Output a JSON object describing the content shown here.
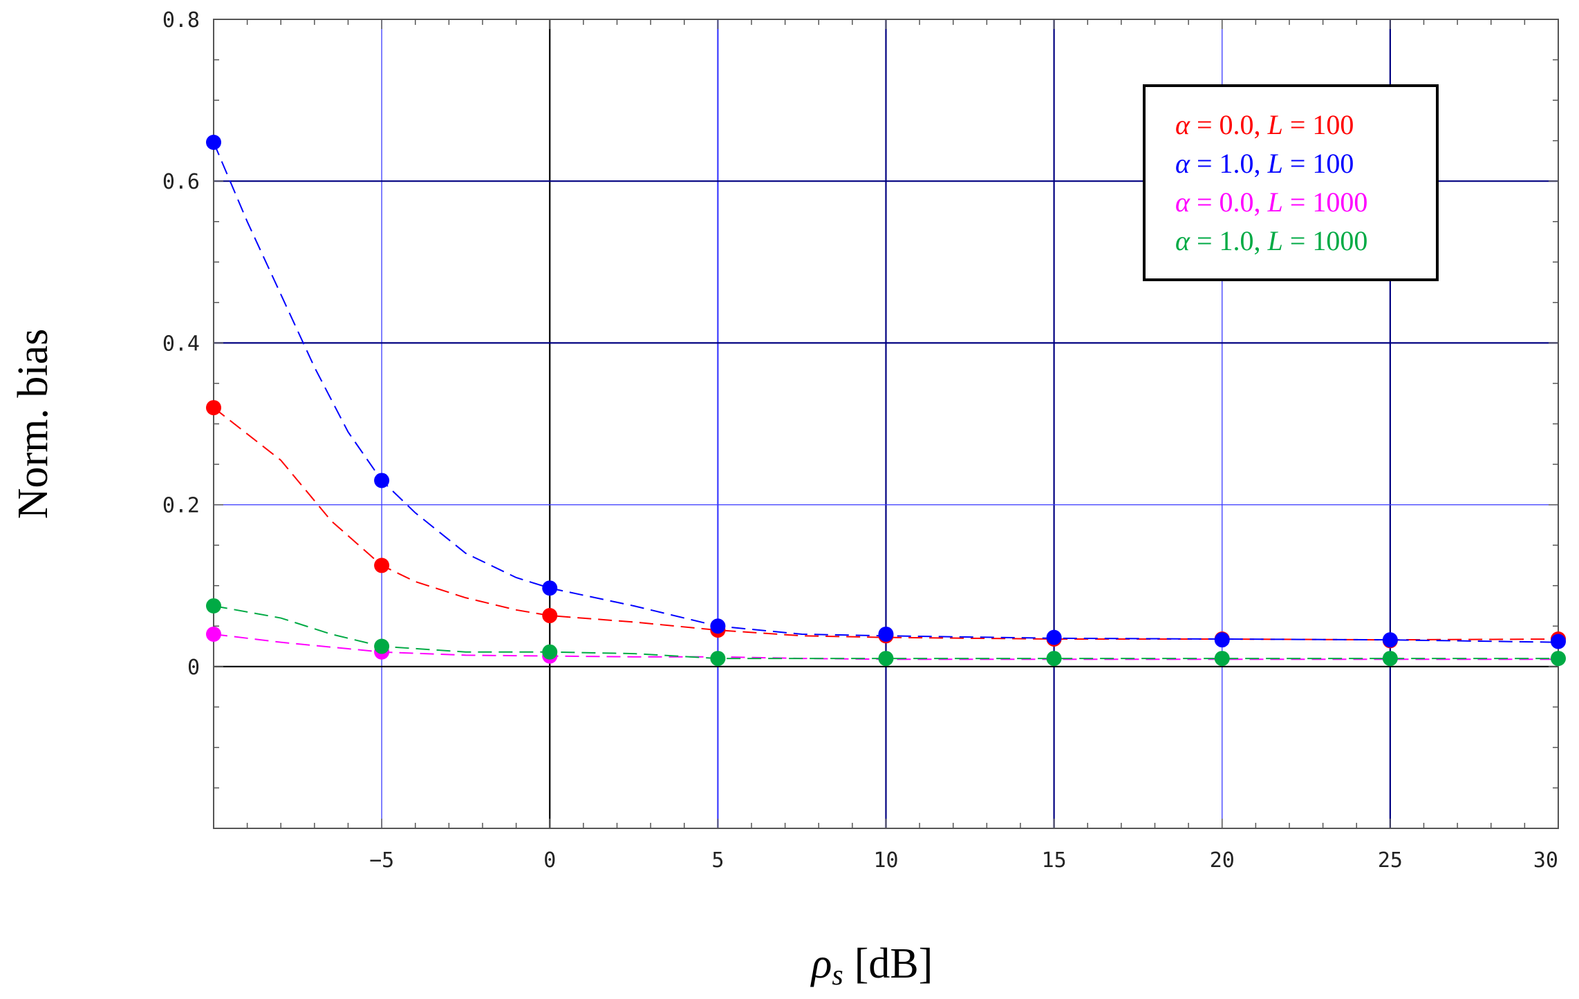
{
  "chart_data": {
    "type": "line",
    "xlabel": "ρs [dB]",
    "xlabel_symbol": "ρ",
    "xlabel_subscript": "s",
    "xlabel_unit": "[dB]",
    "ylabel": "Norm. bias",
    "xlim": [
      -10,
      30
    ],
    "ylim": [
      -0.2,
      0.8
    ],
    "x_major_ticks": [
      -5,
      0,
      5,
      10,
      15,
      20,
      25,
      30
    ],
    "x_tick_labels": [
      "−5",
      "0",
      "5",
      "10",
      "15",
      "20",
      "25",
      "30"
    ],
    "y_major_ticks": [
      0,
      0.2,
      0.4,
      0.6,
      0.8
    ],
    "y_tick_labels": [
      "0",
      "0.2",
      "0.4",
      "0.6",
      "0.8"
    ],
    "grid": true,
    "legend_position": "top-right",
    "line_style": "dashed",
    "markers": "filled circles",
    "series": [
      {
        "name": "α = 0.0, L = 100",
        "label_parts": [
          "α",
          " = 0.0, ",
          "L",
          " = 100"
        ],
        "color": "#ff0000",
        "x": [
          -10,
          -5,
          0,
          5,
          10,
          15,
          20,
          25,
          30
        ],
        "y": [
          0.32,
          0.125,
          0.063,
          0.045,
          0.038,
          0.034,
          0.034,
          0.032,
          0.034
        ],
        "curve_x": [
          -10,
          -8,
          -6.5,
          -5,
          -4,
          -2.5,
          -1,
          0,
          2.5,
          5,
          7.5,
          10,
          15,
          20,
          25,
          30
        ],
        "curve_y": [
          0.32,
          0.255,
          0.18,
          0.125,
          0.105,
          0.085,
          0.07,
          0.063,
          0.055,
          0.045,
          0.038,
          0.036,
          0.034,
          0.034,
          0.033,
          0.034
        ]
      },
      {
        "name": "α = 1.0, L = 100",
        "label_parts": [
          "α",
          " = 1.0, ",
          "L",
          " = 100"
        ],
        "color": "#0000ff",
        "x": [
          -10,
          -5,
          0,
          5,
          10,
          15,
          20,
          25,
          30
        ],
        "y": [
          0.648,
          0.23,
          0.097,
          0.05,
          0.04,
          0.036,
          0.033,
          0.033,
          0.031
        ],
        "curve_x": [
          -10,
          -9,
          -8,
          -7,
          -6,
          -5,
          -4,
          -2.5,
          -1,
          0,
          2.5,
          5,
          7.5,
          10,
          15,
          20,
          25,
          30
        ],
        "curve_y": [
          0.648,
          0.55,
          0.46,
          0.37,
          0.29,
          0.23,
          0.19,
          0.14,
          0.11,
          0.097,
          0.075,
          0.05,
          0.04,
          0.038,
          0.035,
          0.034,
          0.033,
          0.03
        ]
      },
      {
        "name": "α = 0.0, L = 1000",
        "label_parts": [
          "α",
          " = 0.0, ",
          "L",
          " = 1000"
        ],
        "color": "#ff00ff",
        "x": [
          -10,
          -5,
          0
        ],
        "y": [
          0.04,
          0.018,
          0.013
        ],
        "curve_x": [
          -10,
          -8,
          -6,
          -5,
          -2.5,
          0,
          2.5,
          5,
          7.5,
          10,
          20,
          30
        ],
        "curve_y": [
          0.04,
          0.03,
          0.022,
          0.018,
          0.014,
          0.013,
          0.012,
          0.012,
          0.01,
          0.009,
          0.009,
          0.009
        ]
      },
      {
        "name": "α = 1.0, L = 1000",
        "label_parts": [
          "α",
          " = 1.0, ",
          "L",
          " = 1000"
        ],
        "color": "#00aa44",
        "x": [
          -10,
          -5,
          0,
          5,
          10,
          15,
          20,
          25,
          30
        ],
        "y": [
          0.075,
          0.025,
          0.018,
          0.01,
          0.01,
          0.01,
          0.01,
          0.01,
          0.01
        ],
        "curve_x": [
          -10,
          -8,
          -6.5,
          -5,
          -2.5,
          0,
          2.5,
          5,
          10,
          15,
          20,
          25,
          30
        ],
        "curve_y": [
          0.075,
          0.06,
          0.04,
          0.025,
          0.018,
          0.018,
          0.016,
          0.01,
          0.01,
          0.01,
          0.01,
          0.01,
          0.01
        ]
      }
    ]
  }
}
